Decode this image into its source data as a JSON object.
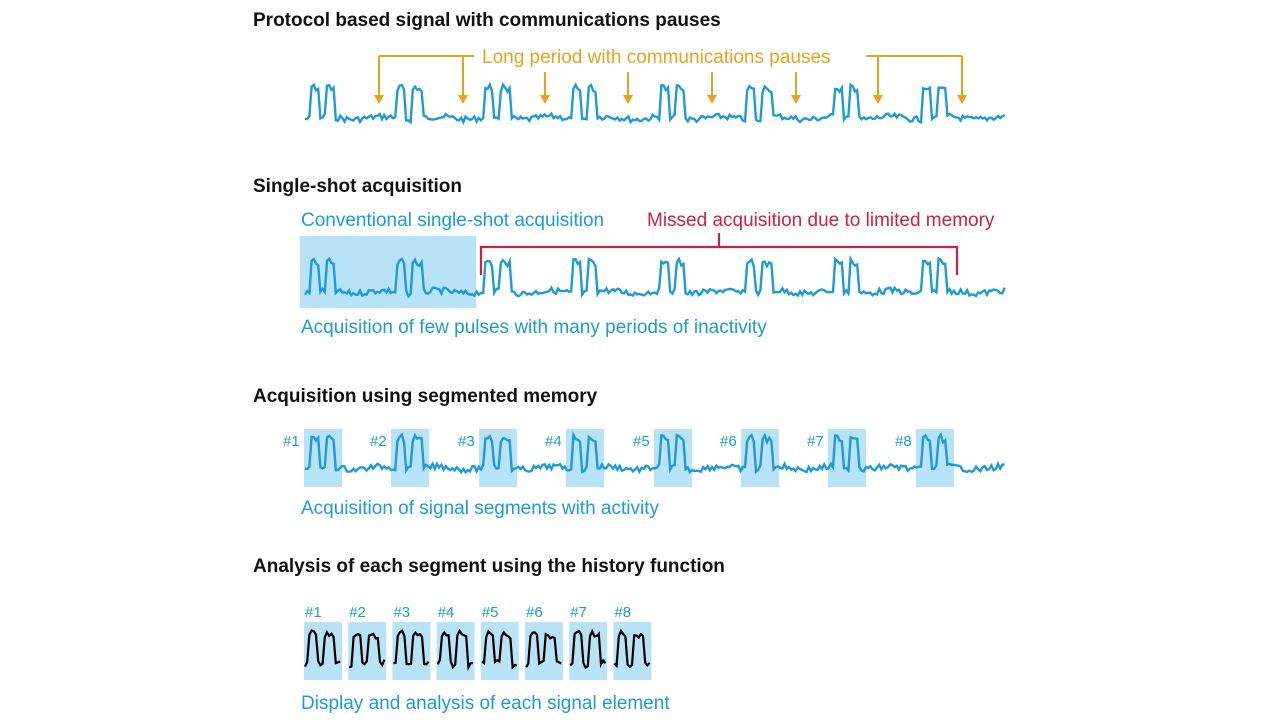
{
  "colors": {
    "signal": "#1e9bd7",
    "highlight": "#b8e2f6",
    "orange": "#e8a31e",
    "red": "#d01f45",
    "heading": "#111111",
    "trace_black": "#000000"
  },
  "section1": {
    "title": "Protocol based signal with communications pauses",
    "annotation": "Long period with communications pauses"
  },
  "section2": {
    "title": "Single-shot acquisition",
    "conventional_label": "Conventional single-shot acquisition",
    "missed_label": "Missed acquisition due to limited memory",
    "caption": "Acquisition of few pulses with many periods of inactivity"
  },
  "section3": {
    "title": "Acquisition using segmented memory",
    "segment_labels": [
      "#1",
      "#2",
      "#3",
      "#4",
      "#5",
      "#6",
      "#7",
      "#8"
    ],
    "caption": "Acquisition of signal segments with activity"
  },
  "section4": {
    "title": "Analysis of each segment using the history function",
    "segment_labels": [
      "#1",
      "#2",
      "#3",
      "#4",
      "#5",
      "#6",
      "#7",
      "#8"
    ],
    "caption": "Display and analysis of each signal element"
  }
}
